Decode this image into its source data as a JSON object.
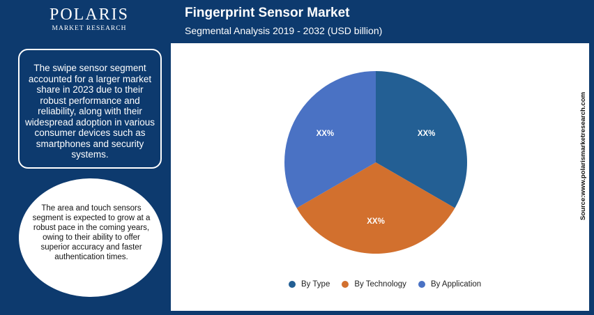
{
  "header": {
    "logo_name": "POLARIS",
    "logo_sub": "MARKET RESEARCH",
    "title": "Fingerprint Sensor Market",
    "subtitle": "Segmental Analysis 2019 - 2032 (USD billion)"
  },
  "insights": {
    "box_text": "The swipe sensor segment accounted for a larger market share in 2023 due to their robust performance and reliability, along with their widespread adoption in various consumer devices such as smartphones and security systems.",
    "circle_text": "The area and touch sensors segment is expected to grow at a robust pace in the coming years, owing to their ability to offer superior accuracy and faster authentication times."
  },
  "source": "Source:www.polarismarketresearch.com",
  "colors": {
    "frame": "#0d3a6e",
    "by_type": "#235f94",
    "by_technology": "#d2702e",
    "by_application": "#4a72c4"
  },
  "chart_data": {
    "type": "pie",
    "title": "Fingerprint Sensor Market",
    "slices": [
      {
        "name": "By Type",
        "value": 33.33,
        "label": "XX%",
        "color": "#235f94"
      },
      {
        "name": "By Technology",
        "value": 33.33,
        "label": "XX%",
        "color": "#d2702e"
      },
      {
        "name": "By Application",
        "value": 33.34,
        "label": "XX%",
        "color": "#4a72c4"
      }
    ],
    "legend": [
      "By Type",
      "By Technology",
      "By Application"
    ],
    "legend_position": "bottom"
  }
}
